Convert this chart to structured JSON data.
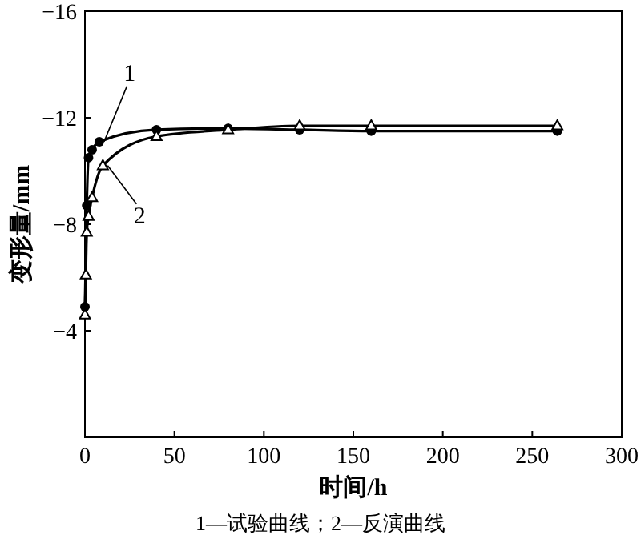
{
  "chart_data": {
    "type": "line",
    "xlabel": "时间/h",
    "ylabel": "变形量/mm",
    "xlim": [
      0,
      300
    ],
    "xticks": [
      0,
      50,
      100,
      150,
      200,
      250,
      300
    ],
    "ylim": [
      0,
      -16
    ],
    "yticks": [
      -4,
      -8,
      -12,
      -16
    ],
    "grid": false,
    "line_style": "solid",
    "series": [
      {
        "name": "1",
        "color": "#000000",
        "marker": "circle",
        "x": [
          0,
          1,
          2,
          4,
          8,
          40,
          80,
          120,
          160,
          264
        ],
        "values": [
          -4.9,
          -8.7,
          -10.5,
          -10.8,
          -11.1,
          -11.55,
          -11.6,
          -11.55,
          -11.5,
          -11.5
        ]
      },
      {
        "name": "2",
        "color": "#000000",
        "marker": "triangle",
        "x": [
          0,
          0.5,
          1,
          2,
          4,
          10,
          40,
          80,
          120,
          160,
          264
        ],
        "values": [
          -4.6,
          -6.1,
          -7.7,
          -8.3,
          -9.0,
          -10.2,
          -11.3,
          -11.55,
          -11.7,
          -11.7,
          -11.7
        ]
      }
    ],
    "annotations": [
      "1—试验曲线；2—反演曲线"
    ]
  }
}
